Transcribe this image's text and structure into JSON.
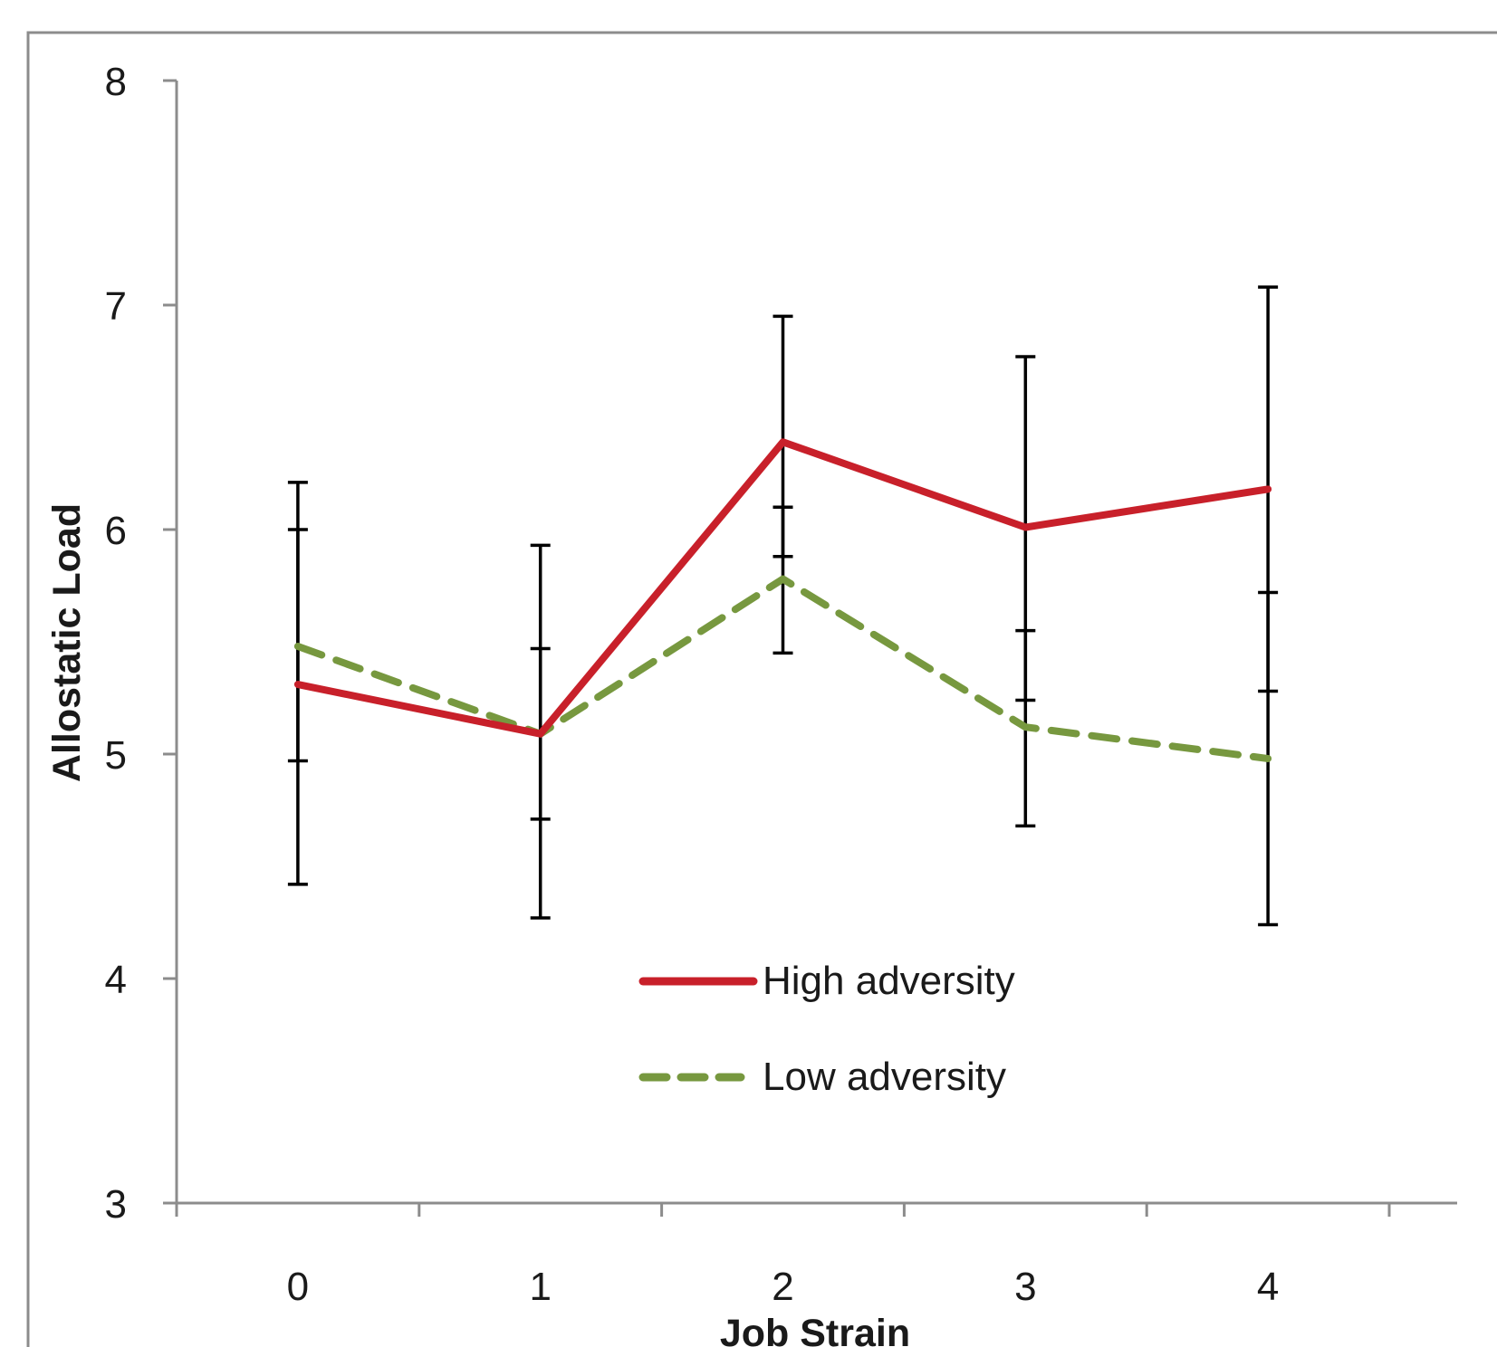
{
  "chart_data": {
    "type": "line",
    "title": "",
    "xlabel": "Job Strain",
    "ylabel": "Allostatic Load",
    "categories": [
      "0",
      "1",
      "2",
      "3",
      "4"
    ],
    "ylim": [
      3,
      8
    ],
    "yticks": [
      3,
      4,
      5,
      6,
      7,
      8
    ],
    "grid": false,
    "legend_position": "bottom-center",
    "series": [
      {
        "name": "High adversity",
        "style": "solid",
        "color": "#c8202a",
        "values": [
          5.31,
          5.09,
          6.39,
          6.01,
          6.18
        ],
        "error_low": [
          4.42,
          4.27,
          5.88,
          5.24,
          5.28
        ],
        "error_high": [
          6.21,
          5.93,
          6.95,
          6.77,
          7.08
        ]
      },
      {
        "name": "Low adversity",
        "style": "dashed",
        "color": "#77983f",
        "values": [
          5.48,
          5.09,
          5.78,
          5.12,
          4.98
        ],
        "error_low": [
          4.97,
          4.71,
          5.45,
          4.68,
          4.24
        ],
        "error_high": [
          6.0,
          5.47,
          6.1,
          5.55,
          5.72
        ]
      }
    ]
  }
}
